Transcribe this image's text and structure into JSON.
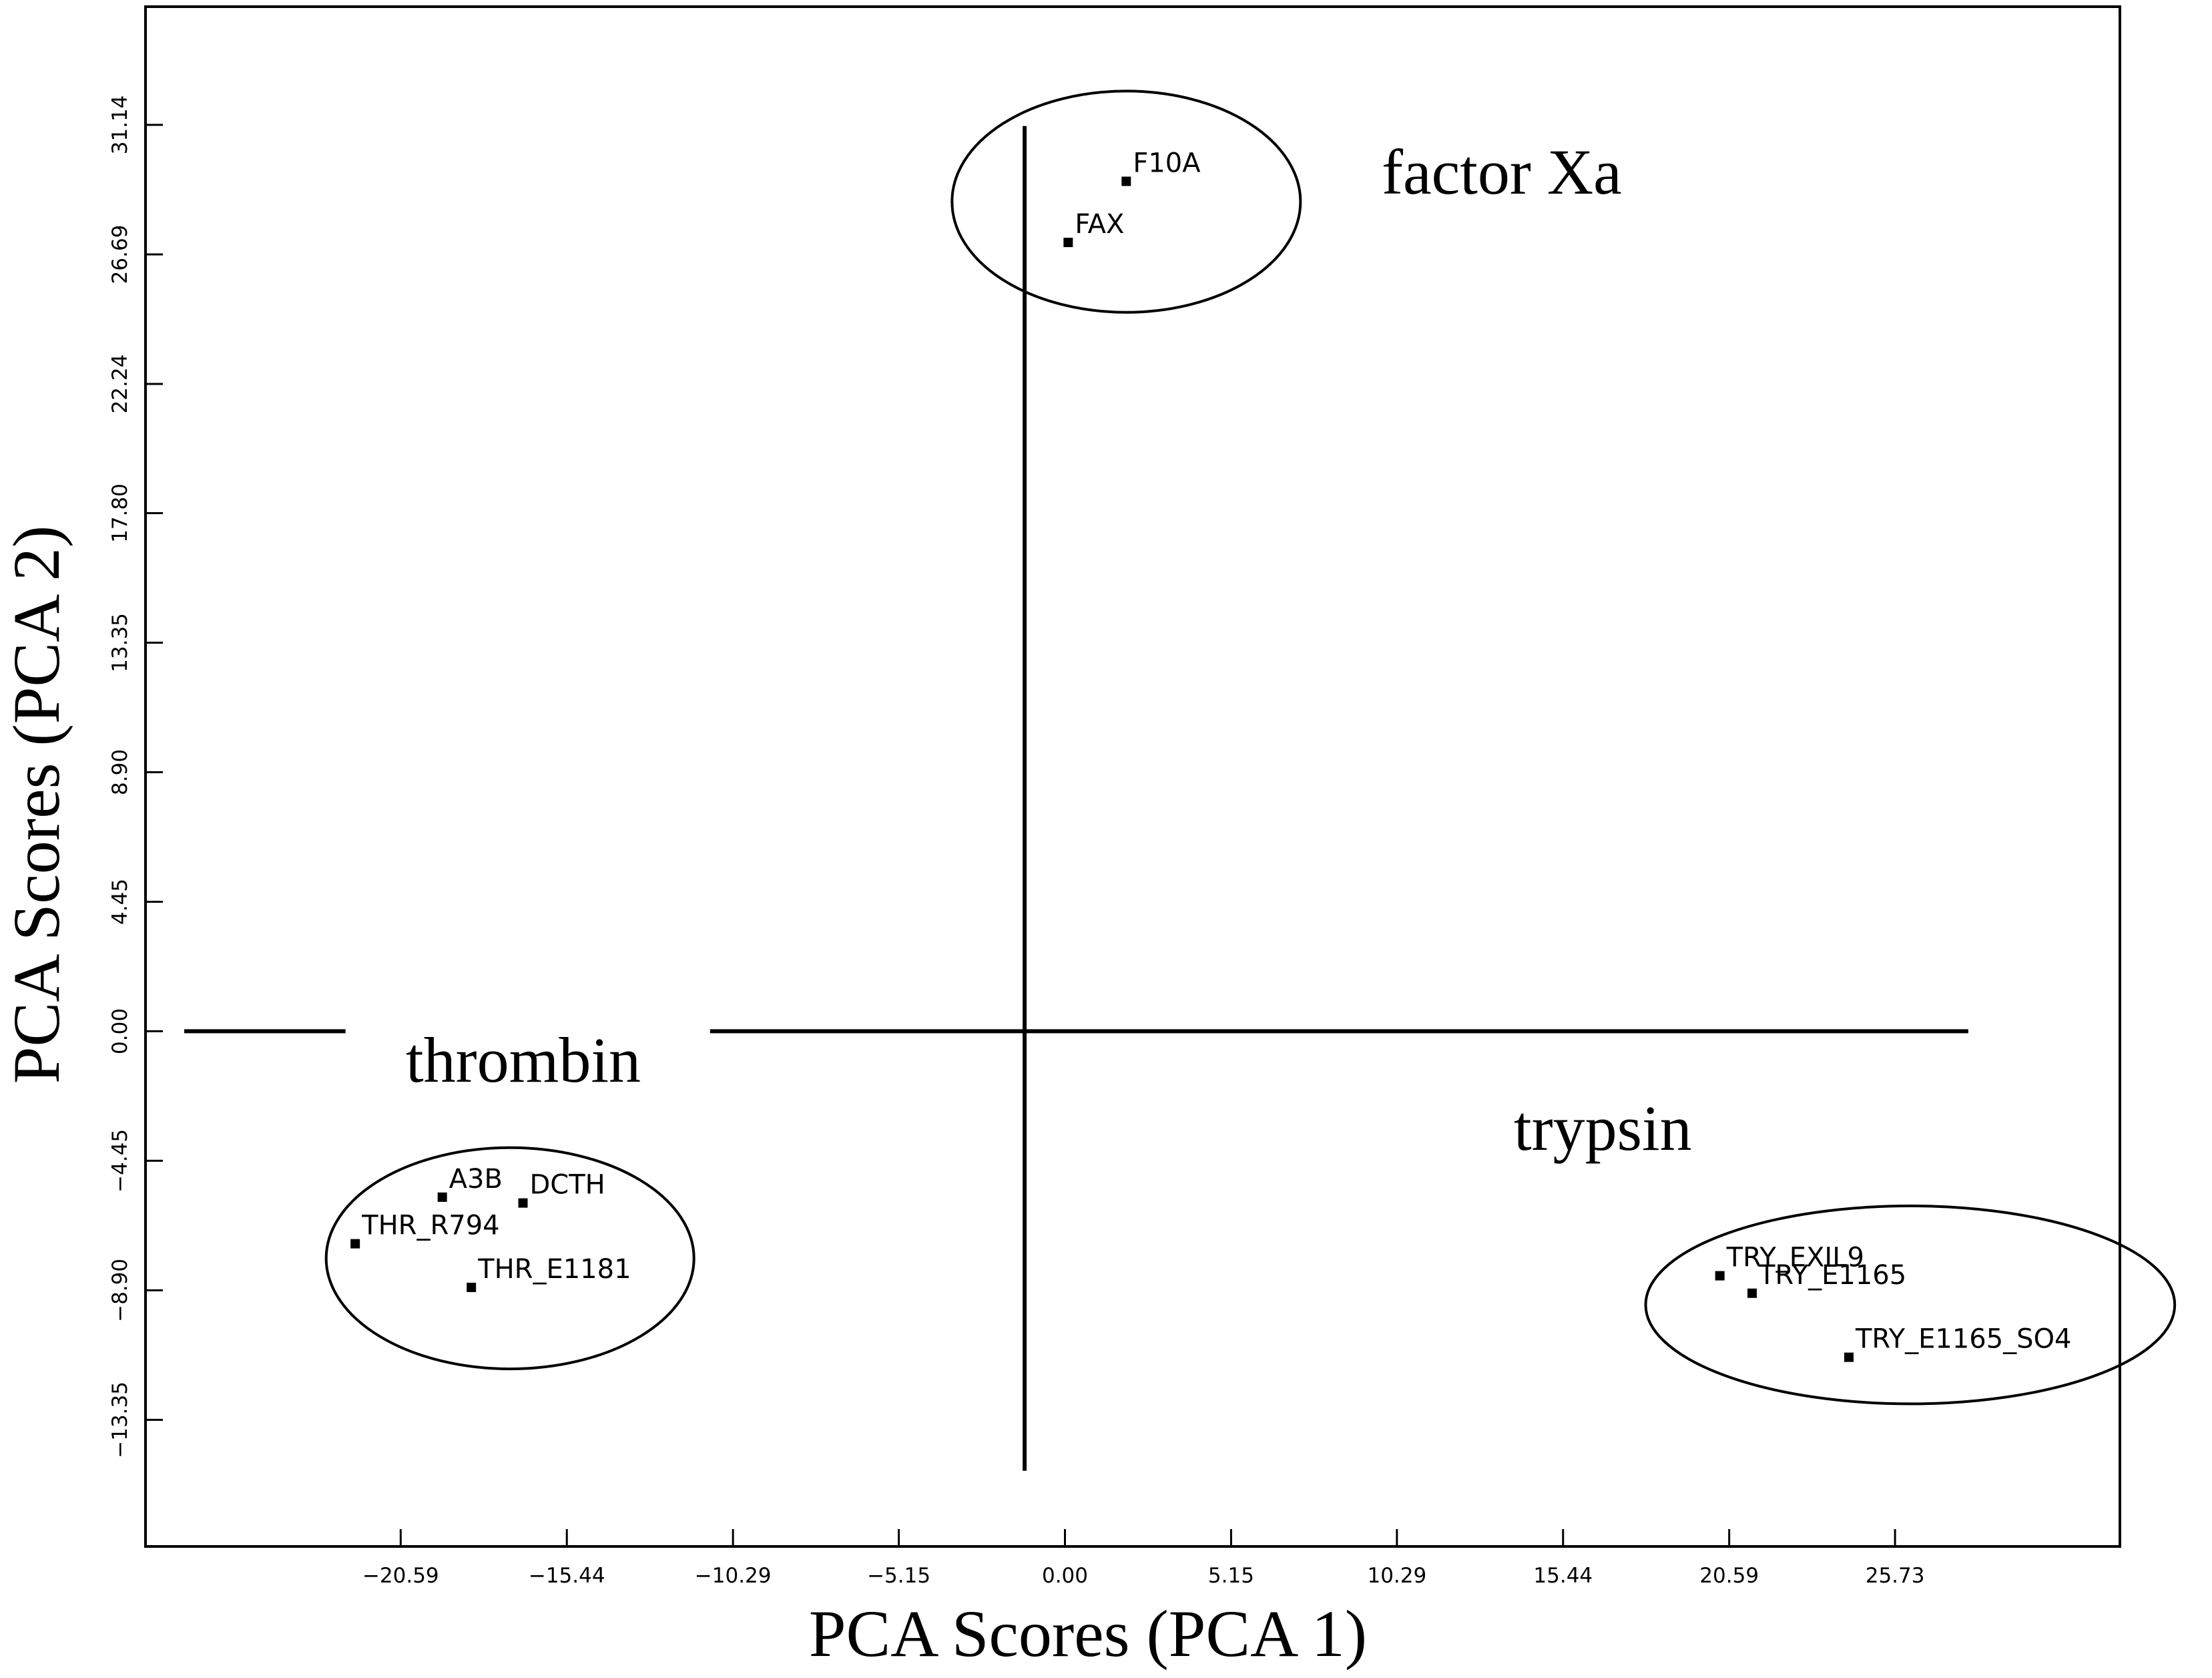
{
  "chart_data": {
    "type": "scatter",
    "xlabel": "PCA Scores (PCA 1)",
    "ylabel": "PCA Scores (PCA 2)",
    "xlim": [
      -28.5,
      32.7
    ],
    "ylim": [
      -17.7,
      35.2
    ],
    "xticks": [
      -20.59,
      -15.44,
      -10.29,
      -5.15,
      0.0,
      5.15,
      10.29,
      15.44,
      20.59,
      25.73
    ],
    "xtick_labels": [
      "−20.59",
      "−15.44",
      "−10.29",
      "−5.15",
      "0.00",
      "5.15",
      "10.29",
      "15.44",
      "20.59",
      "25.73"
    ],
    "yticks": [
      31.14,
      26.69,
      22.24,
      17.8,
      13.35,
      8.9,
      4.45,
      0.0,
      -4.45,
      -8.9,
      -13.35
    ],
    "ytick_labels": [
      "31.14",
      "26.69",
      "22.24",
      "17.80",
      "13.35",
      "8.90",
      "4.45",
      "0.00",
      "−4.45",
      "−8.90",
      "−13.35"
    ],
    "grid": false,
    "points": [
      {
        "label": "F10A",
        "x": 1.9,
        "y": 29.2
      },
      {
        "label": "FAX",
        "x": 0.1,
        "y": 27.1
      },
      {
        "label": "A3B",
        "x": -19.3,
        "y": -5.7
      },
      {
        "label": "DCTH",
        "x": -16.8,
        "y": -5.9
      },
      {
        "label": "THR_R794",
        "x": -22.0,
        "y": -7.3
      },
      {
        "label": "THR_E1181",
        "x": -18.4,
        "y": -8.8
      },
      {
        "label": "TRY_EXIL9",
        "x": 20.3,
        "y": -8.4
      },
      {
        "label": "TRY_E1165",
        "x": 21.3,
        "y": -9.0
      },
      {
        "label": "TRY_E1165_SO4",
        "x": 24.3,
        "y": -11.2
      }
    ],
    "groups": [
      {
        "label": "factor Xa",
        "center": [
          1.9,
          28.5
        ],
        "rx": 5.4,
        "ry": 3.8
      },
      {
        "label": "thrombin",
        "center": [
          -17.2,
          -7.8
        ],
        "rx": 5.7,
        "ry": 3.8
      },
      {
        "label": "trypsin",
        "center": [
          26.2,
          -9.4
        ],
        "rx": 8.2,
        "ry": 3.4
      }
    ],
    "reference_lines": {
      "vertical": {
        "x": -1.25,
        "y_range": [
          -15.1,
          31.1
        ]
      },
      "horizontal": {
        "y": 0.0,
        "segments": [
          [
            -27.3,
            -22.3
          ],
          [
            -11.0,
            28.0
          ]
        ]
      }
    },
    "colors": {
      "ink": "#000000",
      "background": "#ffffff"
    }
  }
}
